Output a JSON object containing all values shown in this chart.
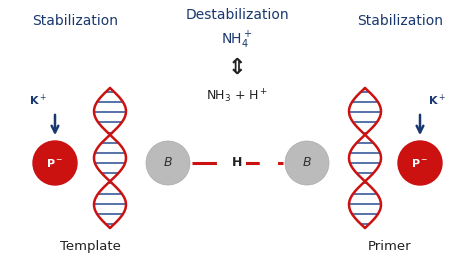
{
  "bg_color": "#ffffff",
  "title_color": "#1a3870",
  "arrow_color": "#1a3870",
  "dna_red": "#cc1111",
  "dna_blue": "#3a5a9a",
  "p_circle_color": "#cc1111",
  "b_circle_color": "#bbbbbb",
  "h_bond_color": "#cc1111",
  "text_dark": "#222222",
  "stabilization_left": "Stabilization",
  "stabilization_right": "Stabilization",
  "destabilization": "Destabilization",
  "template": "Template",
  "primer": "Primer",
  "b_label": "B",
  "h_label": "H",
  "figsize": [
    4.74,
    2.66
  ],
  "dpi": 100
}
